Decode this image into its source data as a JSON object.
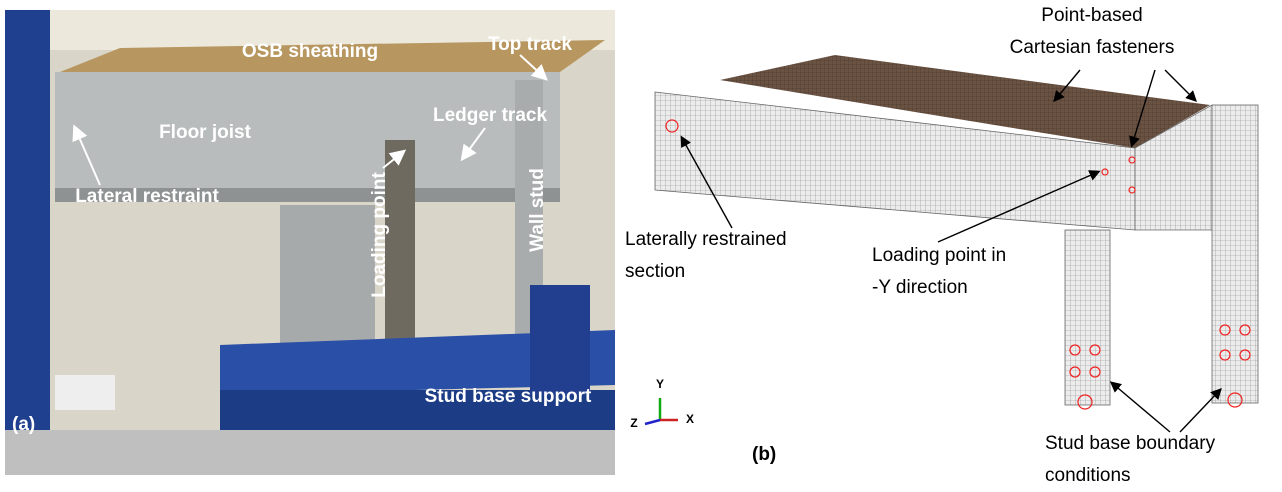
{
  "panel_a": {
    "label": "(a)",
    "annotations": [
      "OSB sheathing",
      "Top track",
      "Floor joist",
      "Ledger track",
      "Lateral restraint",
      "Loading point",
      "Wall stud",
      "Stud base support"
    ]
  },
  "panel_b": {
    "label": "(b)",
    "annotations": [
      [
        "Point-based",
        "Cartesian fasteners"
      ],
      [
        "Laterally restrained",
        "section"
      ],
      [
        "Loading point in",
        "-Y direction"
      ],
      [
        "Stud base boundary",
        "conditions"
      ]
    ],
    "axes": {
      "y": "Y",
      "z": "Z",
      "x": "X"
    }
  }
}
